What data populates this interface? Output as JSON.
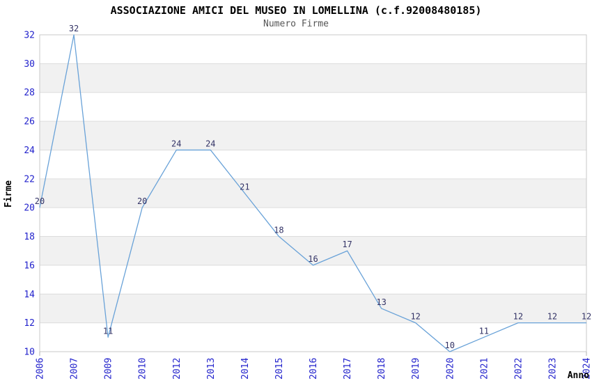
{
  "colors": {
    "title": "#000000",
    "subtitle": "#555555",
    "axis_title": "#000000",
    "tick_label": "#2222CC",
    "point_label": "#333366",
    "line": "#69A2D8",
    "band": "#F1F1F1",
    "grid": "#DCDCDC",
    "frame": "#C9C9C9",
    "tick_mark": "#B0B0B0",
    "background": "#FFFFFF"
  },
  "chart_data": {
    "type": "line",
    "title": "ASSOCIAZIONE AMICI DEL MUSEO IN LOMELLINA (c.f.92008480185)",
    "subtitle": "Numero Firme",
    "xlabel": "Anno",
    "ylabel": "Firme",
    "categories": [
      "2006",
      "2007",
      "2009",
      "2010",
      "2012",
      "2013",
      "2014",
      "2015",
      "2016",
      "2017",
      "2018",
      "2019",
      "2020",
      "2021",
      "2022",
      "2023",
      "2024"
    ],
    "values": [
      20,
      32,
      11,
      20,
      24,
      24,
      21,
      18,
      16,
      17,
      13,
      12,
      10,
      11,
      12,
      12,
      12
    ],
    "ylim": [
      10,
      32
    ],
    "ytick_step": 2,
    "yticks": [
      10,
      12,
      14,
      16,
      18,
      20,
      22,
      24,
      26,
      28,
      30,
      32
    ],
    "grid": "horizontal gridlines with alternating gray bands",
    "legend": "none",
    "point_labels_visible": true,
    "x_tick_label_rotation": -90
  }
}
